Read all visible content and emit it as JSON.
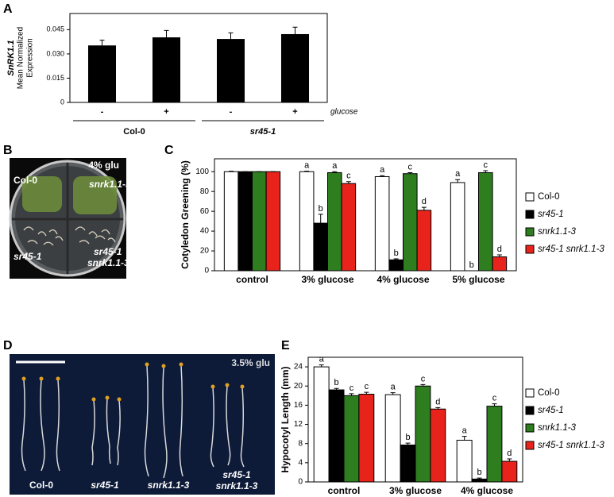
{
  "panel_labels": [
    "A",
    "B",
    "C",
    "D",
    "E"
  ],
  "chart_data": [
    {
      "type": "bar",
      "ylabel": [
        "SnRK1.1",
        "Mean Normalized",
        "Expression"
      ],
      "categories": [
        "-",
        "+",
        "-",
        "+"
      ],
      "groups": [
        "Col-0",
        "sr45-1"
      ],
      "x_note": "glucose",
      "series": [
        {
          "color": "#000000",
          "values": [
            0.035,
            0.04,
            0.039,
            0.042
          ],
          "errors": [
            0.0035,
            0.0045,
            0.004,
            0.0045
          ]
        }
      ],
      "ylim": [
        0,
        0.055
      ],
      "yticks": [
        0,
        0.015,
        {
          "value": 0.03,
          "label": "0.030"
        },
        0.045
      ]
    },
    {
      "type": "bar",
      "ylabel": "Cotyledon Greening (%)",
      "categories": [
        "control",
        "3% glucose",
        "4% glucose",
        "5% glucose"
      ],
      "series": [
        {
          "name": "Col-0",
          "italic": false,
          "color": "#ffffff",
          "values": [
            100,
            100,
            95,
            89
          ],
          "errors": [
            0.5,
            0.5,
            1,
            3
          ],
          "letters": [
            null,
            "a",
            "a",
            "a"
          ]
        },
        {
          "name": "sr45-1",
          "italic": true,
          "color": "#000000",
          "values": [
            100,
            48,
            11,
            0
          ],
          "errors": [
            0,
            9,
            1,
            0
          ],
          "letters": [
            null,
            "b",
            "b",
            "b"
          ]
        },
        {
          "name": "snrk1.1-3",
          "italic": true,
          "color": "#2e7d1f",
          "values": [
            100,
            99,
            98,
            99
          ],
          "errors": [
            0,
            1,
            1,
            2
          ],
          "letters": [
            null,
            "a",
            "c",
            "c"
          ]
        },
        {
          "name": "sr45-1 snrk1.1-3",
          "italic": true,
          "color": "#e8231c",
          "values": [
            100,
            88,
            61,
            14
          ],
          "errors": [
            0,
            2,
            3,
            2
          ],
          "letters": [
            null,
            "c",
            "d",
            "d"
          ]
        }
      ],
      "ylim": [
        0,
        113
      ],
      "yticks": [
        0,
        20,
        40,
        60,
        80,
        100
      ],
      "legend": "right"
    },
    {
      "type": "bar",
      "ylabel": "Hypocotyl Length (mm)",
      "categories": [
        "control",
        "3% glucose",
        "4% glucose"
      ],
      "series": [
        {
          "name": "Col-0",
          "italic": false,
          "color": "#ffffff",
          "values": [
            24,
            18.2,
            8.7
          ],
          "errors": [
            0.4,
            0.4,
            0.8
          ],
          "letters": [
            "a",
            "a",
            "a"
          ]
        },
        {
          "name": "sr45-1",
          "italic": true,
          "color": "#000000",
          "values": [
            19.2,
            7.7,
            0.6
          ],
          "errors": [
            0.3,
            0.4,
            0.2
          ],
          "letters": [
            "b",
            "b",
            "b"
          ]
        },
        {
          "name": "snrk1.1-3",
          "italic": true,
          "color": "#2e7d1f",
          "values": [
            18,
            20,
            15.8
          ],
          "errors": [
            0.4,
            0.3,
            0.5
          ],
          "letters": [
            "c",
            "c",
            "c"
          ]
        },
        {
          "name": "sr45-1 snrk1.1-3",
          "italic": true,
          "color": "#e8231c",
          "values": [
            18.3,
            15.2,
            4.3
          ],
          "errors": [
            0.4,
            0.3,
            0.5
          ],
          "letters": [
            "c",
            "d",
            "d"
          ]
        }
      ],
      "ylim": [
        0,
        26
      ],
      "yticks": [
        0,
        4,
        8,
        12,
        16,
        20,
        24
      ],
      "legend": "right"
    }
  ],
  "photos": [
    {
      "title": "4% glu",
      "labels": [
        [
          "Col-0"
        ],
        [
          "snrk1.1-3"
        ],
        [
          "sr45-1"
        ],
        [
          "sr45-1",
          "snrk1.1-3"
        ]
      ]
    },
    {
      "title": "3.5% glu",
      "labels": [
        [
          "Col-0"
        ],
        [
          "sr45-1"
        ],
        [
          "snrk1.1-3"
        ],
        [
          "sr45-1",
          "snrk1.1-3"
        ]
      ]
    }
  ]
}
